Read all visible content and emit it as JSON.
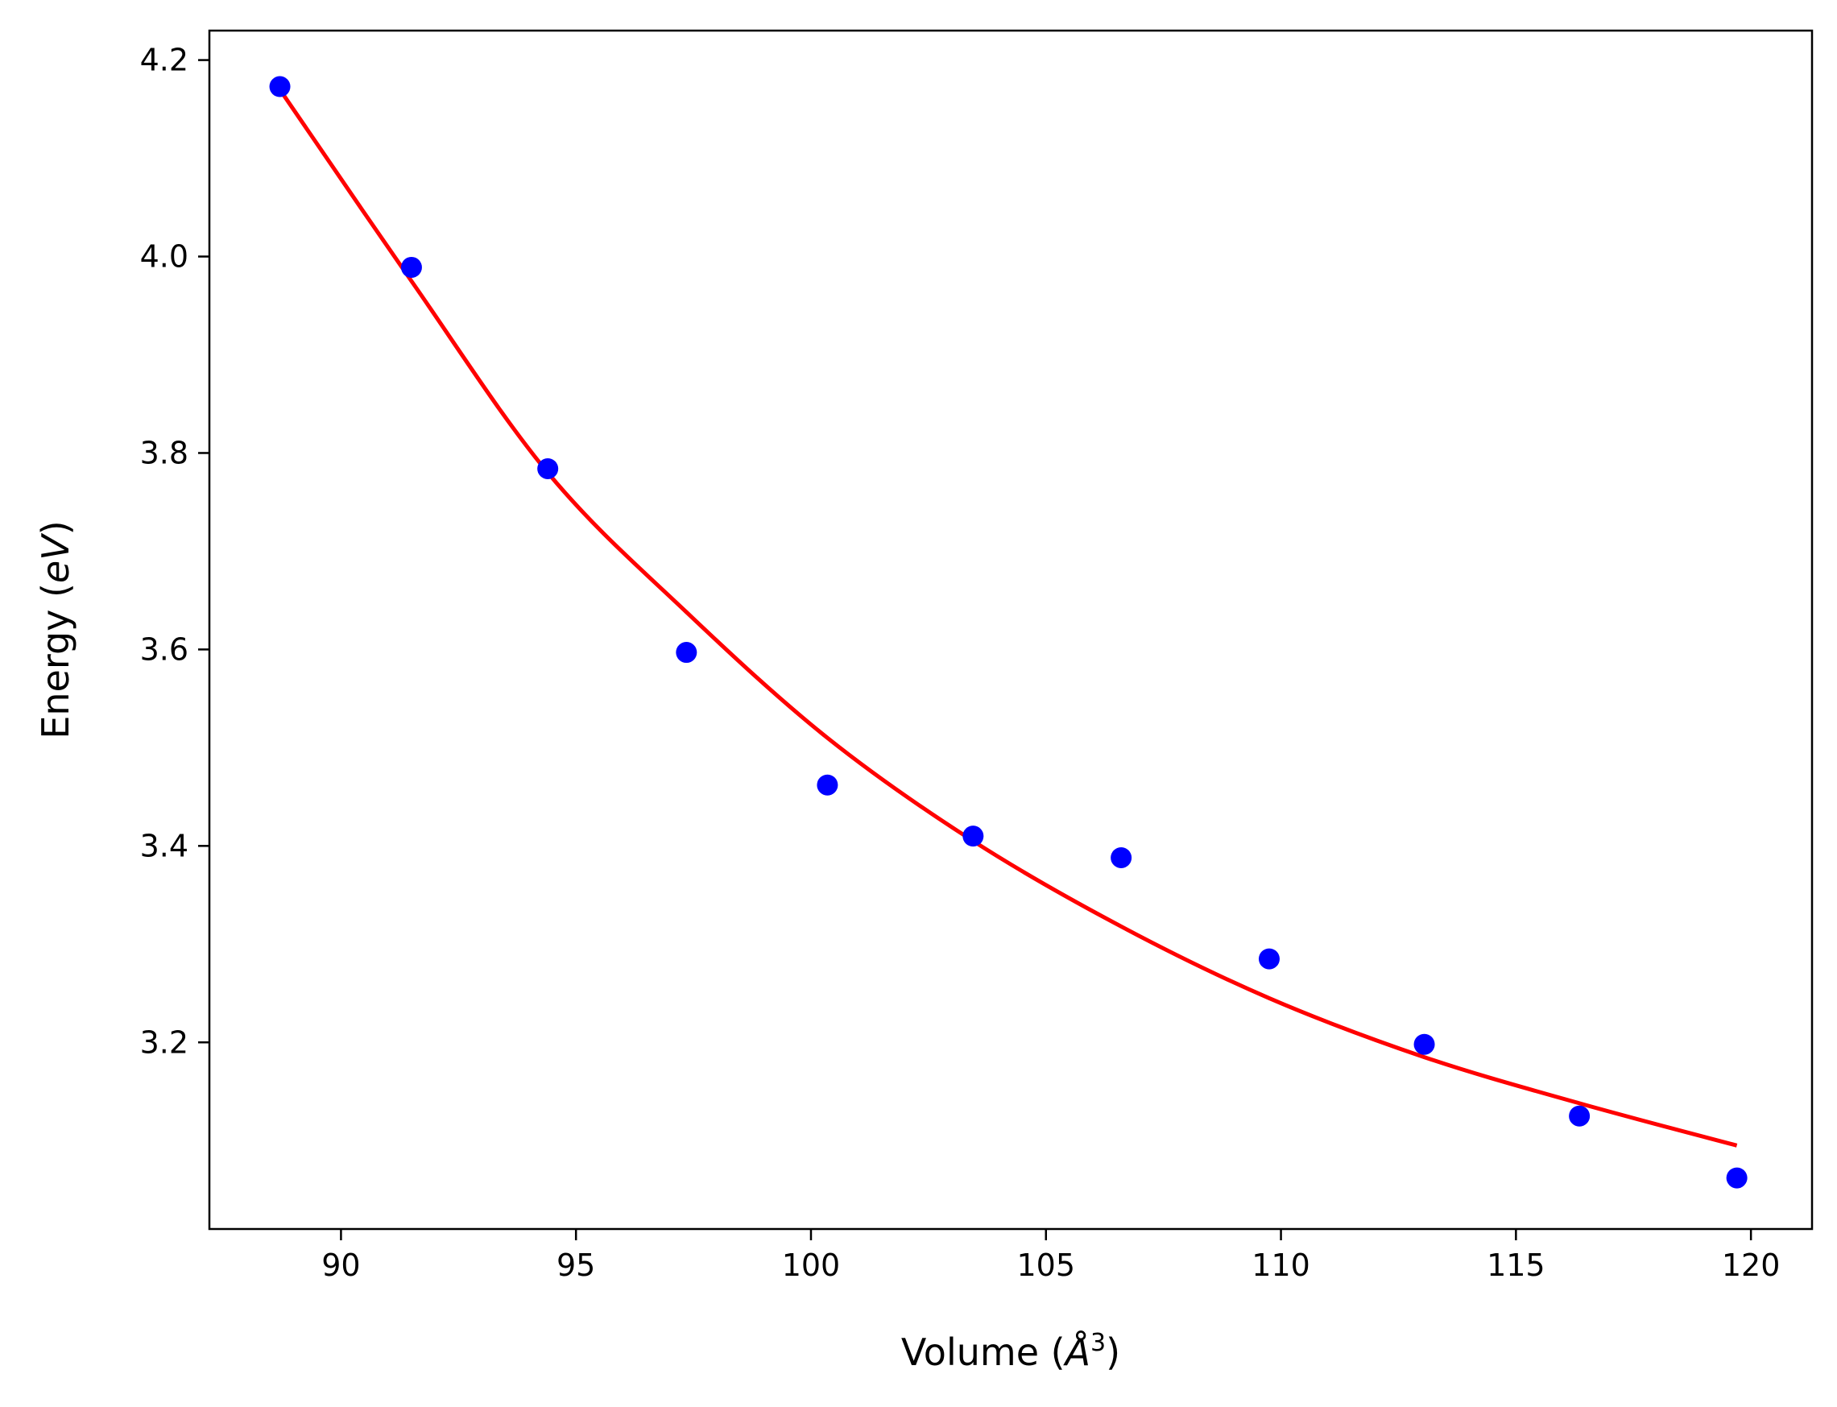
{
  "chart_data": {
    "type": "scatter",
    "title": "",
    "xlabel": "Volume (",
    "xlabel_symbol": "Å",
    "xlabel_sup": "3",
    "xlabel_close": ")",
    "ylabel": "Energy (",
    "ylabel_unit": "eV",
    "ylabel_close": ")",
    "xlim": [
      87.2,
      121.3
    ],
    "ylim": [
      3.01,
      4.23
    ],
    "x_ticks": [
      90,
      95,
      100,
      105,
      110,
      115,
      120
    ],
    "x_tick_labels": [
      "90",
      "95",
      "100",
      "105",
      "110",
      "115",
      "120"
    ],
    "y_ticks": [
      3.2,
      3.4,
      3.6,
      3.8,
      4.0,
      4.2
    ],
    "y_tick_labels": [
      "3.2",
      "3.4",
      "3.6",
      "3.8",
      "4.0",
      "4.2"
    ],
    "grid": false,
    "series": [
      {
        "kind": "points",
        "color": "#0000ff",
        "x": [
          88.7,
          91.5,
          94.4,
          97.35,
          100.35,
          103.45,
          106.6,
          109.75,
          113.05,
          116.35,
          119.7
        ],
        "y": [
          4.173,
          3.989,
          3.784,
          3.597,
          3.462,
          3.41,
          3.388,
          3.285,
          3.198,
          3.125,
          3.062
        ]
      },
      {
        "kind": "fit-line",
        "color": "#ff0000",
        "x": [
          88.7,
          91.5,
          94.4,
          97.35,
          100.35,
          103.45,
          106.6,
          109.75,
          113.05,
          116.35,
          119.7
        ],
        "y": [
          4.17,
          3.975,
          3.78,
          3.638,
          3.51,
          3.405,
          3.318,
          3.245,
          3.185,
          3.138,
          3.095
        ]
      }
    ]
  }
}
